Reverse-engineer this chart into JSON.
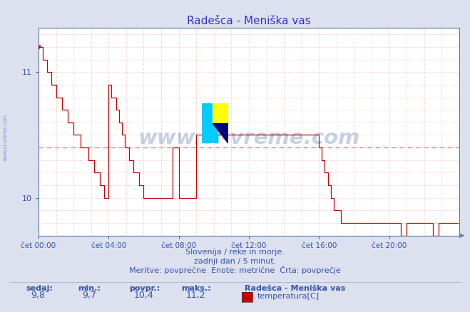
{
  "title": "Radešca - Meniška vas",
  "title_color": "#3333cc",
  "bg_color": "#dde0ee",
  "plot_bg_color": "#ffffff",
  "line_color": "#cc0000",
  "grid_color": "#ffaaaa",
  "avg_line_color": "#ff5555",
  "avg_value": 10.4,
  "y_min": 9.7,
  "y_max": 11.35,
  "y_ticks": [
    10,
    11
  ],
  "x_tick_positions": [
    0,
    48,
    96,
    144,
    192,
    240
  ],
  "x_tick_labels": [
    "čet 00:00",
    "čet 04:00",
    "čet 08:00",
    "čet 12:00",
    "čet 16:00",
    "čet 20:00"
  ],
  "total_points": 288,
  "subtitle1": "Slovenija / reke in morje.",
  "subtitle2": "zadnji dan / 5 minut.",
  "subtitle3": "Meritve: povprečne  Enote: metrične  Črta: povprečje",
  "footer_labels": [
    "sedaj:",
    "min.:",
    "povpr.:",
    "maks.:"
  ],
  "footer_values": [
    "9,8",
    "9,7",
    "10,4",
    "11,2"
  ],
  "legend_title": "Radešca - Meniška vas",
  "legend_item": "temperatura[C]",
  "legend_color": "#cc0000",
  "watermark_text": "www.si-vreme.com",
  "side_watermark": "www.si-vreme.com",
  "temp_data": [
    11.2,
    11.2,
    11.2,
    11.1,
    11.1,
    11.1,
    11.0,
    11.0,
    11.0,
    10.9,
    10.9,
    10.9,
    10.8,
    10.8,
    10.8,
    10.8,
    10.7,
    10.7,
    10.7,
    10.7,
    10.6,
    10.6,
    10.6,
    10.6,
    10.5,
    10.5,
    10.5,
    10.5,
    10.5,
    10.4,
    10.4,
    10.4,
    10.4,
    10.4,
    10.3,
    10.3,
    10.3,
    10.3,
    10.2,
    10.2,
    10.2,
    10.2,
    10.1,
    10.1,
    10.1,
    10.0,
    10.0,
    10.0,
    10.9,
    10.9,
    10.8,
    10.8,
    10.8,
    10.7,
    10.7,
    10.6,
    10.6,
    10.5,
    10.5,
    10.4,
    10.4,
    10.4,
    10.3,
    10.3,
    10.3,
    10.2,
    10.2,
    10.2,
    10.2,
    10.1,
    10.1,
    10.1,
    10.0,
    10.0,
    10.0,
    10.0,
    10.0,
    10.0,
    10.0,
    10.0,
    10.0,
    10.0,
    10.0,
    10.0,
    10.0,
    10.0,
    10.0,
    10.0,
    10.0,
    10.0,
    10.0,
    10.0,
    10.4,
    10.4,
    10.4,
    10.4,
    10.0,
    10.0,
    10.0,
    10.0,
    10.0,
    10.0,
    10.0,
    10.0,
    10.0,
    10.0,
    10.0,
    10.0,
    10.5,
    10.5,
    10.5,
    10.5,
    10.5,
    10.5,
    10.5,
    10.5,
    10.5,
    10.5,
    10.5,
    10.5,
    10.5,
    10.5,
    10.5,
    10.5,
    10.5,
    10.5,
    10.5,
    10.5,
    10.5,
    10.5,
    10.5,
    10.5,
    10.5,
    10.5,
    10.5,
    10.5,
    10.5,
    10.5,
    10.5,
    10.5,
    10.5,
    10.5,
    10.5,
    10.5,
    10.5,
    10.5,
    10.5,
    10.5,
    10.5,
    10.5,
    10.5,
    10.5,
    10.5,
    10.5,
    10.5,
    10.5,
    10.5,
    10.5,
    10.5,
    10.5,
    10.5,
    10.5,
    10.5,
    10.5,
    10.5,
    10.5,
    10.5,
    10.5,
    10.5,
    10.5,
    10.5,
    10.5,
    10.5,
    10.5,
    10.5,
    10.5,
    10.5,
    10.5,
    10.5,
    10.5,
    10.5,
    10.5,
    10.5,
    10.5,
    10.5,
    10.5,
    10.5,
    10.5,
    10.5,
    10.5,
    10.5,
    10.5,
    10.4,
    10.4,
    10.3,
    10.3,
    10.2,
    10.2,
    10.1,
    10.1,
    10.0,
    10.0,
    9.9,
    9.9,
    9.9,
    9.9,
    9.9,
    9.8,
    9.8,
    9.8,
    9.8,
    9.8,
    9.8,
    9.8,
    9.8,
    9.8,
    9.8,
    9.8,
    9.8,
    9.8,
    9.8,
    9.8,
    9.8,
    9.8,
    9.8,
    9.8,
    9.8,
    9.8,
    9.8,
    9.8,
    9.8,
    9.8,
    9.8,
    9.8,
    9.8,
    9.8,
    9.8,
    9.8,
    9.8,
    9.8,
    9.8,
    9.8,
    9.8,
    9.8,
    9.8,
    9.8,
    9.8,
    9.8,
    9.7,
    9.7,
    9.7,
    9.7,
    9.8,
    9.8,
    9.8,
    9.8,
    9.8,
    9.8,
    9.8,
    9.8,
    9.8,
    9.8,
    9.8,
    9.8,
    9.8,
    9.8,
    9.8,
    9.8,
    9.8,
    9.8,
    9.7,
    9.7,
    9.7,
    9.7,
    9.8,
    9.8,
    9.8,
    9.8,
    9.8,
    9.8,
    9.8,
    9.8,
    9.8,
    9.8,
    9.8,
    9.8,
    9.8,
    9.8
  ]
}
